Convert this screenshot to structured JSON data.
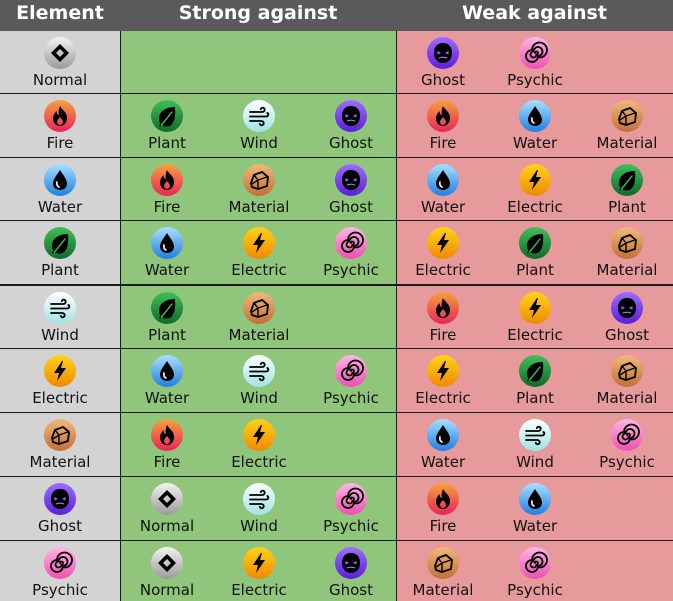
{
  "header": {
    "element": "Element",
    "strong": "Strong against",
    "weak": "Weak against"
  },
  "icon_styles": {
    "Normal": {
      "icon": "diamond-icon",
      "bg1": "#f2f2f2",
      "bg2": "#9a9a9a",
      "glyph": "#000000"
    },
    "Fire": {
      "icon": "flame-icon",
      "bg1": "#f7a23a",
      "bg2": "#e8245a",
      "glyph": "#000000"
    },
    "Water": {
      "icon": "droplet-icon",
      "bg1": "#a7e0ff",
      "bg2": "#1f7fe0",
      "glyph": "#000000"
    },
    "Plant": {
      "icon": "leaf-icon",
      "bg1": "#3fbf5a",
      "bg2": "#0f6a2a",
      "glyph": "#000000"
    },
    "Wind": {
      "icon": "wind-icon",
      "bg1": "#ffffff",
      "bg2": "#9fe3e6",
      "glyph": "#000000"
    },
    "Electric": {
      "icon": "lightning-icon",
      "bg1": "#ffd21a",
      "bg2": "#f08a00",
      "glyph": "#000000"
    },
    "Material": {
      "icon": "rock-icon",
      "bg1": "#f3b878",
      "bg2": "#c07038",
      "glyph": "#000000"
    },
    "Ghost": {
      "icon": "ghost-icon",
      "bg1": "#9d6dff",
      "bg2": "#5a1fd6",
      "glyph": "#000000"
    },
    "Psychic": {
      "icon": "spiral-icon",
      "bg1": "#ffb6e4",
      "bg2": "#ef4fb2",
      "glyph": "#000000"
    }
  },
  "rows": [
    {
      "element": "Normal",
      "strong": [],
      "weak": [
        "Ghost",
        "Psychic"
      ]
    },
    {
      "element": "Fire",
      "strong": [
        "Plant",
        "Wind",
        "Ghost"
      ],
      "weak": [
        "Fire",
        "Water",
        "Material"
      ]
    },
    {
      "element": "Water",
      "strong": [
        "Fire",
        "Material",
        "Ghost"
      ],
      "weak": [
        "Water",
        "Electric",
        "Plant"
      ]
    },
    {
      "element": "Plant",
      "strong": [
        "Water",
        "Electric",
        "Psychic"
      ],
      "weak": [
        "Electric",
        "Plant",
        "Material"
      ]
    },
    {
      "element": "Wind",
      "strong": [
        "Plant",
        "Material"
      ],
      "weak": [
        "Fire",
        "Electric",
        "Ghost"
      ]
    },
    {
      "element": "Electric",
      "strong": [
        "Water",
        "Wind",
        "Psychic"
      ],
      "weak": [
        "Electric",
        "Plant",
        "Material"
      ]
    },
    {
      "element": "Material",
      "strong": [
        "Fire",
        "Electric"
      ],
      "weak": [
        "Water",
        "Wind",
        "Psychic"
      ]
    },
    {
      "element": "Ghost",
      "strong": [
        "Normal",
        "Wind",
        "Psychic"
      ],
      "weak": [
        "Fire",
        "Water"
      ]
    },
    {
      "element": "Psychic",
      "strong": [
        "Normal",
        "Electric",
        "Ghost"
      ],
      "weak": [
        "Material",
        "Psychic"
      ]
    }
  ]
}
